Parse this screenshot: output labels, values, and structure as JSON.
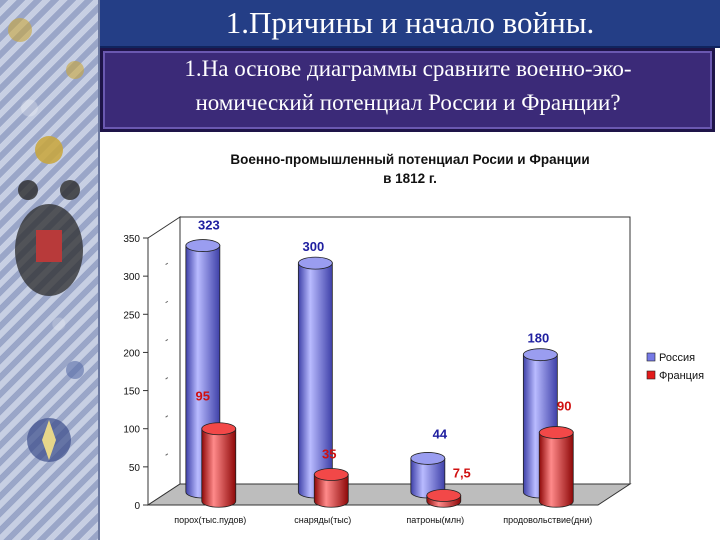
{
  "header": {
    "title": "1.Причины и начало войны."
  },
  "question": {
    "line1": "1.На основе диаграммы сравните военно-эко-",
    "line2": "номический потенциал России и Франции?"
  },
  "colors": {
    "russia": "#6f73e0",
    "france": "#e01c1c",
    "header_bg": "#243e86",
    "question_bg": "#3b2a78"
  },
  "chart_data": {
    "type": "bar",
    "title_line1": "Военно-промышленный потенциал Росии и Франции",
    "title_line2": "в 1812 г.",
    "categories": [
      "порох(тыс.пудов)",
      "снаряды(тыс)",
      "патроны(млн)",
      "продовольствие(дни)"
    ],
    "series": [
      {
        "name": "Россия",
        "values": [
          323,
          300,
          44,
          180
        ],
        "labels": [
          "323",
          "300",
          "44",
          "180"
        ]
      },
      {
        "name": "Франция",
        "values": [
          95,
          35,
          7.5,
          90
        ],
        "labels": [
          "95",
          "35",
          "7,5",
          "90"
        ]
      }
    ],
    "ylim": [
      0,
      350
    ],
    "yticks": [
      0,
      50,
      100,
      150,
      200,
      250,
      300,
      350
    ],
    "legend": "right",
    "style": "3d-cylinder"
  }
}
